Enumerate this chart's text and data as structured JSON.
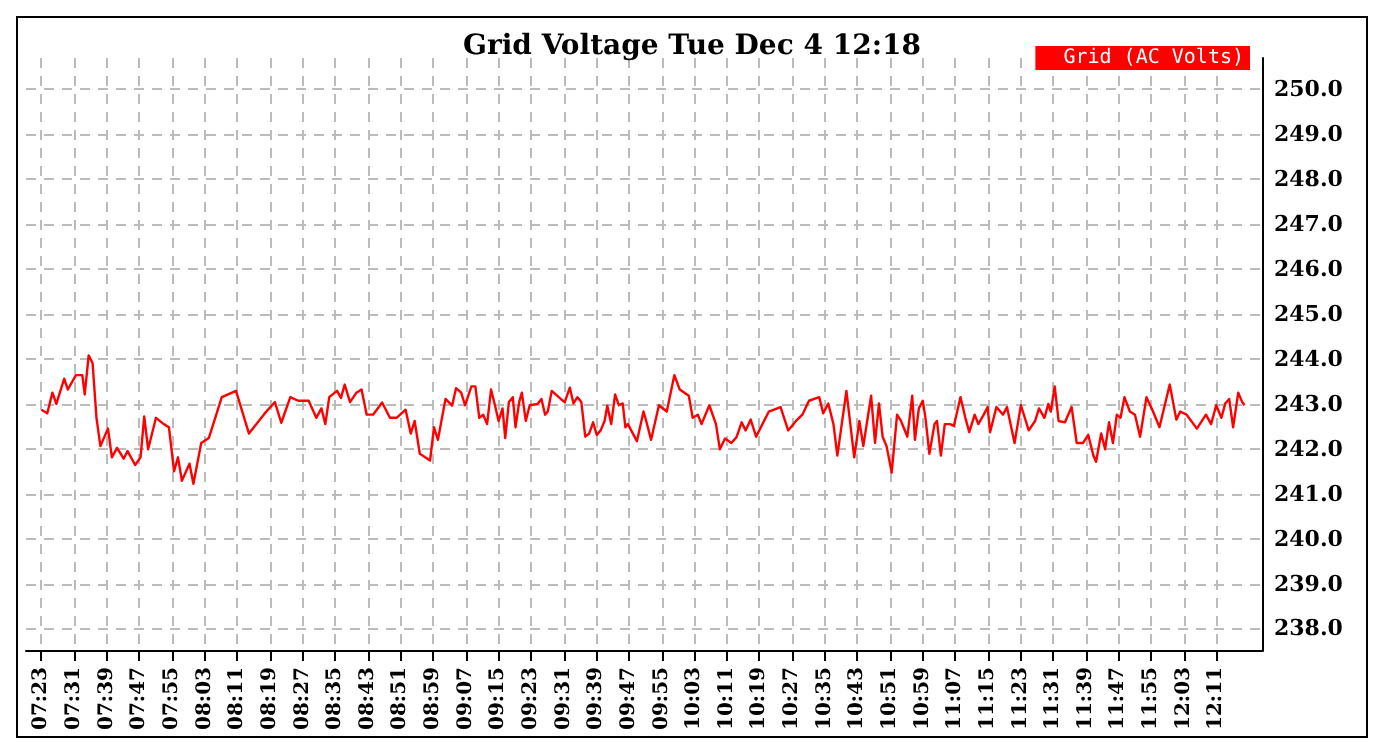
{
  "chart_data": {
    "type": "line",
    "title": "Grid Voltage Tue Dec 4 12:18",
    "x": [
      7.383,
      7.407,
      7.428,
      7.444,
      7.476,
      7.491,
      7.524,
      7.55,
      7.56,
      7.576,
      7.592,
      7.608,
      7.624,
      7.655,
      7.671,
      7.692,
      7.719,
      7.735,
      7.766,
      7.788,
      7.803,
      7.819,
      7.851,
      7.883,
      7.904,
      7.925,
      7.941,
      7.957,
      7.988,
      8.004,
      8.036,
      8.067,
      8.12,
      8.178,
      8.231,
      8.3,
      8.337,
      8.363,
      8.4,
      8.432,
      8.475,
      8.506,
      8.527,
      8.543,
      8.559,
      8.591,
      8.607,
      8.622,
      8.644,
      8.67,
      8.691,
      8.712,
      8.738,
      8.775,
      8.807,
      8.834,
      8.871,
      8.892,
      8.908,
      8.929,
      8.971,
      8.987,
      9.003,
      9.034,
      9.061,
      9.077,
      9.098,
      9.114,
      9.14,
      9.156,
      9.172,
      9.188,
      9.204,
      9.22,
      9.236,
      9.251,
      9.267,
      9.278,
      9.293,
      9.309,
      9.32,
      9.335,
      9.346,
      9.362,
      9.378,
      9.41,
      9.426,
      9.441,
      9.452,
      9.468,
      9.505,
      9.521,
      9.542,
      9.557,
      9.573,
      9.589,
      9.605,
      9.621,
      9.637,
      9.652,
      9.668,
      9.684,
      9.695,
      9.711,
      9.727,
      9.742,
      9.758,
      9.769,
      9.779,
      9.816,
      9.843,
      9.854,
      9.874,
      9.906,
      9.938,
      9.969,
      9.991,
      10.028,
      10.044,
      10.065,
      10.08,
      10.112,
      10.139,
      10.155,
      10.176,
      10.202,
      10.223,
      10.244,
      10.26,
      10.281,
      10.303,
      10.329,
      10.355,
      10.403,
      10.434,
      10.466,
      10.492,
      10.519,
      10.561,
      10.577,
      10.598,
      10.619,
      10.635,
      10.672,
      10.704,
      10.725,
      10.741,
      10.773,
      10.789,
      10.805,
      10.82,
      10.836,
      10.857,
      10.879,
      10.895,
      10.921,
      10.941,
      10.952,
      10.968,
      10.984,
      10.995,
      11.011,
      11.032,
      11.042,
      11.058,
      11.074,
      11.095,
      11.111,
      11.138,
      11.158,
      11.174,
      11.196,
      11.211,
      11.233,
      11.249,
      11.259,
      11.285,
      11.312,
      11.328,
      11.359,
      11.385,
      11.417,
      11.443,
      11.459,
      11.481,
      11.497,
      11.507,
      11.523,
      11.539,
      11.565,
      11.592,
      11.613,
      11.639,
      11.66,
      11.681,
      11.692,
      11.713,
      11.729,
      11.745,
      11.761,
      11.777,
      11.792,
      11.808,
      11.83,
      11.851,
      11.872,
      11.898,
      11.925,
      11.951,
      11.993,
      12.02,
      12.036,
      12.062,
      12.104,
      12.141,
      12.162,
      12.183,
      12.204,
      12.22,
      12.236,
      12.252,
      12.273,
      12.289,
      12.299
    ],
    "series": [
      {
        "name": "Grid (AC Volts)",
        "color": "#ff0000",
        "values": [
          242.87,
          242.79,
          243.25,
          243.0,
          243.56,
          243.32,
          243.64,
          243.64,
          243.21,
          244.08,
          243.91,
          242.69,
          242.06,
          242.45,
          241.81,
          242.02,
          241.78,
          241.95,
          241.64,
          241.81,
          242.72,
          241.99,
          242.69,
          242.55,
          242.48,
          241.5,
          241.81,
          241.29,
          241.67,
          241.22,
          242.13,
          242.24,
          243.15,
          243.29,
          242.34,
          242.82,
          243.04,
          242.58,
          243.15,
          243.07,
          243.07,
          242.69,
          242.9,
          242.55,
          243.15,
          243.29,
          243.13,
          243.43,
          243.04,
          243.25,
          243.32,
          242.76,
          242.76,
          243.03,
          242.69,
          242.69,
          242.87,
          242.34,
          242.62,
          241.89,
          241.74,
          242.48,
          242.2,
          243.11,
          242.96,
          243.35,
          243.25,
          242.97,
          243.39,
          243.39,
          242.69,
          242.76,
          242.55,
          243.32,
          242.97,
          242.62,
          242.9,
          242.24,
          243.04,
          243.15,
          242.48,
          243.04,
          243.25,
          242.62,
          242.97,
          243.0,
          243.11,
          242.76,
          242.83,
          243.29,
          243.11,
          243.04,
          243.36,
          243.01,
          243.15,
          243.04,
          242.27,
          242.34,
          242.59,
          242.31,
          242.41,
          242.62,
          242.96,
          242.55,
          243.21,
          242.97,
          243.01,
          242.48,
          242.55,
          242.17,
          242.83,
          242.62,
          242.2,
          242.97,
          242.83,
          243.64,
          243.32,
          243.18,
          242.69,
          242.76,
          242.55,
          242.97,
          242.55,
          241.99,
          242.23,
          242.13,
          242.26,
          242.59,
          242.41,
          242.65,
          242.27,
          242.55,
          242.83,
          242.93,
          242.41,
          242.62,
          242.76,
          243.07,
          243.15,
          242.79,
          243.01,
          242.55,
          241.85,
          243.29,
          241.81,
          242.62,
          242.06,
          243.18,
          242.13,
          243.01,
          242.27,
          242.06,
          241.47,
          242.76,
          242.62,
          242.27,
          243.18,
          242.2,
          242.9,
          243.07,
          242.69,
          241.89,
          242.55,
          242.62,
          241.85,
          242.55,
          242.55,
          242.51,
          243.15,
          242.69,
          242.37,
          242.76,
          242.55,
          242.76,
          242.93,
          242.37,
          242.93,
          242.76,
          242.93,
          242.13,
          242.97,
          242.41,
          242.62,
          242.9,
          242.69,
          243.0,
          242.83,
          243.39,
          242.62,
          242.59,
          242.93,
          242.13,
          242.13,
          242.31,
          241.85,
          241.71,
          242.34,
          241.99,
          242.59,
          242.13,
          242.76,
          242.69,
          243.15,
          242.83,
          242.76,
          242.27,
          243.15,
          242.83,
          242.48,
          243.43,
          242.65,
          242.83,
          242.76,
          242.45,
          242.76,
          242.55,
          242.97,
          242.69,
          243.01,
          243.11,
          242.48,
          243.25,
          243.04,
          242.97
        ]
      }
    ],
    "xlim": [
      7.32,
      12.37
    ],
    "xticks": [
      {
        "value": 7.3833,
        "label": "07:23"
      },
      {
        "value": 7.5167,
        "label": "07:31"
      },
      {
        "value": 7.65,
        "label": "07:39"
      },
      {
        "value": 7.7833,
        "label": "07:47"
      },
      {
        "value": 7.9167,
        "label": "07:55"
      },
      {
        "value": 8.05,
        "label": "08:03"
      },
      {
        "value": 8.1833,
        "label": "08:11"
      },
      {
        "value": 8.3167,
        "label": "08:19"
      },
      {
        "value": 8.45,
        "label": "08:27"
      },
      {
        "value": 8.5833,
        "label": "08:35"
      },
      {
        "value": 8.7167,
        "label": "08:43"
      },
      {
        "value": 8.85,
        "label": "08:51"
      },
      {
        "value": 8.9833,
        "label": "08:59"
      },
      {
        "value": 9.1167,
        "label": "09:07"
      },
      {
        "value": 9.25,
        "label": "09:15"
      },
      {
        "value": 9.3833,
        "label": "09:23"
      },
      {
        "value": 9.5167,
        "label": "09:31"
      },
      {
        "value": 9.65,
        "label": "09:39"
      },
      {
        "value": 9.7833,
        "label": "09:47"
      },
      {
        "value": 9.9167,
        "label": "09:55"
      },
      {
        "value": 10.05,
        "label": "10:03"
      },
      {
        "value": 10.1833,
        "label": "10:11"
      },
      {
        "value": 10.3167,
        "label": "10:19"
      },
      {
        "value": 10.45,
        "label": "10:27"
      },
      {
        "value": 10.5833,
        "label": "10:35"
      },
      {
        "value": 10.7167,
        "label": "10:43"
      },
      {
        "value": 10.85,
        "label": "10:51"
      },
      {
        "value": 10.9833,
        "label": "10:59"
      },
      {
        "value": 11.1167,
        "label": "11:07"
      },
      {
        "value": 11.25,
        "label": "11:15"
      },
      {
        "value": 11.3833,
        "label": "11:23"
      },
      {
        "value": 11.5167,
        "label": "11:31"
      },
      {
        "value": 11.65,
        "label": "11:39"
      },
      {
        "value": 11.7833,
        "label": "11:47"
      },
      {
        "value": 11.9167,
        "label": "11:55"
      },
      {
        "value": 12.05,
        "label": "12:03"
      },
      {
        "value": 12.1833,
        "label": "12:11"
      }
    ],
    "ylim": [
      237.5,
      250.7
    ],
    "yticks": [
      {
        "value": 238,
        "label": "238.0"
      },
      {
        "value": 239,
        "label": "239.0"
      },
      {
        "value": 240,
        "label": "240.0"
      },
      {
        "value": 241,
        "label": "241.0"
      },
      {
        "value": 242,
        "label": "242.0"
      },
      {
        "value": 243,
        "label": "243.0"
      },
      {
        "value": 244,
        "label": "244.0"
      },
      {
        "value": 245,
        "label": "245.0"
      },
      {
        "value": 246,
        "label": "246.0"
      },
      {
        "value": 247,
        "label": "247.0"
      },
      {
        "value": 248,
        "label": "248.0"
      },
      {
        "value": 249,
        "label": "249.0"
      },
      {
        "value": 250,
        "label": "250.0"
      }
    ],
    "grid": true,
    "legend": "top right",
    "marker": "none",
    "line_style": "solid"
  }
}
